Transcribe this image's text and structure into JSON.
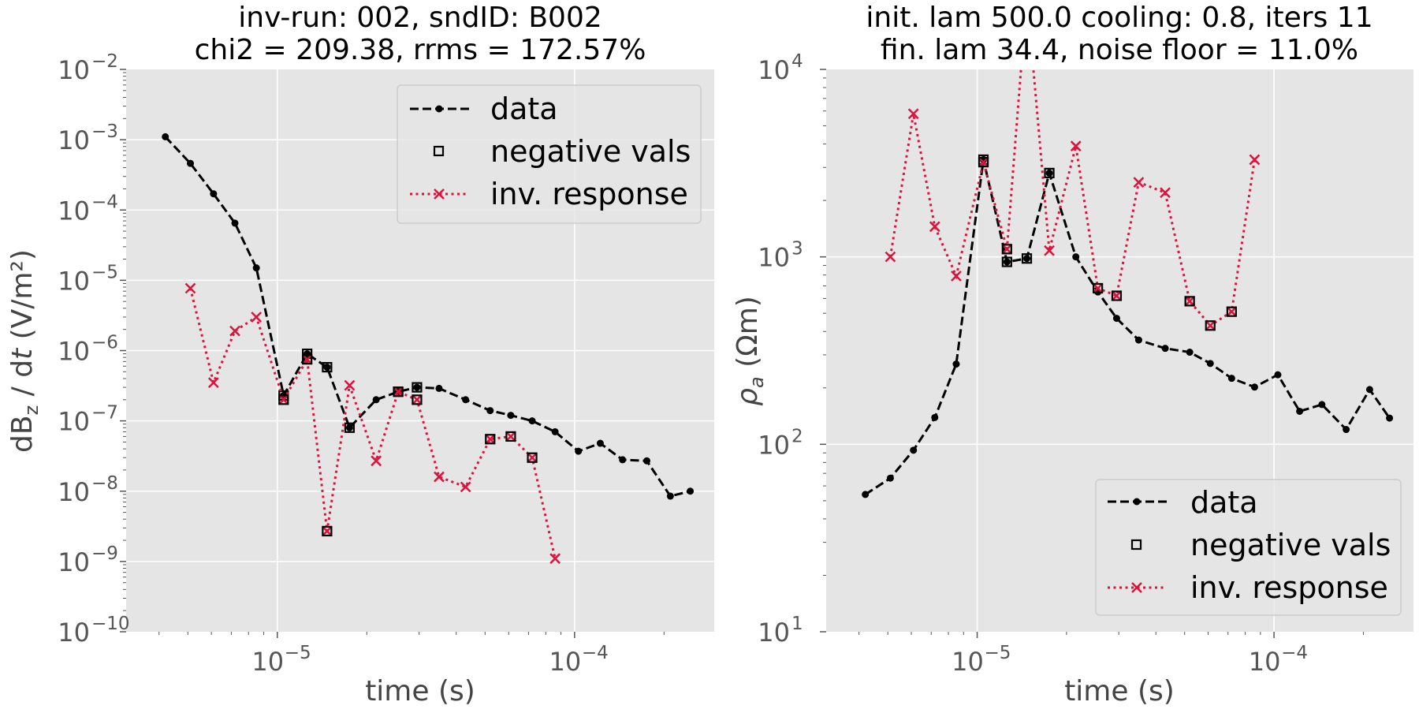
{
  "figure": {
    "left": {
      "title_line1": "inv-run: 002, sndID: B002",
      "title_line2": "chi2 = 209.38, rrms = 172.57%",
      "ylabel": "dB_z / dt (V/m²)",
      "xlabel": "time (s)"
    },
    "right": {
      "title_line1": "init. lam 500.0 cooling: 0.8, iters 11",
      "title_line2": "fin. lam 34.4, noise floor = 11.0%",
      "ylabel": "ρ_a (Ωm)",
      "xlabel": "time (s)"
    },
    "legend": {
      "data": "data",
      "negative": "negative vals",
      "response": "inv. response"
    },
    "colors": {
      "data": "#000000",
      "response": "#dc143c",
      "background": "#e5e5e5",
      "grid": "#ffffff"
    }
  },
  "chart_data": [
    {
      "type": "line",
      "title": "inv-run: 002, sndID: B002 / chi2 = 209.38, rrms = 172.57%",
      "xlabel": "time (s)",
      "ylabel": "dBz / dt (V/m²)",
      "xscale": "log",
      "yscale": "log",
      "xlim": [
        3.1e-06,
        0.000295
      ],
      "ylim": [
        1e-10,
        0.01
      ],
      "xticks": [
        {
          "v": 1e-05,
          "exp": "−5"
        },
        {
          "v": 0.0001,
          "exp": "−4"
        }
      ],
      "yticks": [
        {
          "v": 0.01,
          "exp": "−2"
        },
        {
          "v": 0.001,
          "exp": "−3"
        },
        {
          "v": 0.0001,
          "exp": "−4"
        },
        {
          "v": 1e-05,
          "exp": "−5"
        },
        {
          "v": 1e-06,
          "exp": "−6"
        },
        {
          "v": 1e-07,
          "exp": "−7"
        },
        {
          "v": 1e-08,
          "exp": "−8"
        },
        {
          "v": 1e-09,
          "exp": "−9"
        },
        {
          "v": 1e-10,
          "exp": "−10"
        }
      ],
      "grid": true,
      "legend_position": "upper right",
      "series": [
        {
          "name": "data",
          "style": "dashed-dot",
          "x": [
            4.2e-06,
            5.1e-06,
            6.1e-06,
            7.2e-06,
            8.5e-06,
            1.05e-05,
            1.26e-05,
            1.47e-05,
            1.75e-05,
            2.15e-05,
            2.55e-05,
            2.95e-05,
            3.5e-05,
            4.3e-05,
            5.2e-05,
            6.1e-05,
            7.2e-05,
            8.6e-05,
            0.000103,
            0.000122,
            0.000145,
            0.000175,
            0.00021,
            0.000245
          ],
          "y": [
            0.0011,
            0.00046,
            0.00017,
            6.5e-05,
            1.5e-05,
            2.3e-07,
            9e-07,
            5.8e-07,
            8e-08,
            2e-07,
            2.6e-07,
            3e-07,
            2.9e-07,
            2e-07,
            1.4e-07,
            1.2e-07,
            1e-07,
            7e-08,
            3.7e-08,
            4.8e-08,
            2.8e-08,
            2.7e-08,
            8.5e-09,
            1e-08
          ]
        },
        {
          "name": "negative vals",
          "style": "square",
          "x": [
            1.05e-05,
            1.26e-05,
            1.47e-05,
            1.75e-05,
            2.55e-05,
            2.95e-05
          ],
          "y": [
            2.3e-07,
            9e-07,
            5.8e-07,
            8e-08,
            2.6e-07,
            3e-07
          ]
        },
        {
          "name": "inv. response",
          "style": "dotted-x",
          "x": [
            5.1e-06,
            6.1e-06,
            7.2e-06,
            8.5e-06,
            1.05e-05,
            1.26e-05,
            1.47e-05,
            1.75e-05,
            2.15e-05,
            2.55e-05,
            2.95e-05,
            3.5e-05,
            4.3e-05,
            5.2e-05,
            6.1e-05,
            7.2e-05,
            8.6e-05
          ],
          "y": [
            7.7e-06,
            3.5e-07,
            1.9e-06,
            3e-06,
            2e-07,
            7.5e-07,
            2.7e-09,
            3.2e-07,
            2.7e-08,
            2.6e-07,
            2e-07,
            1.6e-08,
            1.15e-08,
            5.5e-08,
            6e-08,
            3e-08,
            1.1e-09
          ]
        },
        {
          "name": "inv. response negative vals",
          "style": "square",
          "x": [
            1.05e-05,
            1.26e-05,
            1.47e-05,
            2.55e-05,
            2.95e-05,
            5.2e-05,
            6.1e-05,
            7.2e-05
          ],
          "y": [
            2e-07,
            7.5e-07,
            2.7e-09,
            2.6e-07,
            2e-07,
            5.5e-08,
            6e-08,
            3e-08
          ]
        }
      ]
    },
    {
      "type": "line",
      "title": "init. lam 500.0 cooling: 0.8, iters 11 / fin. lam 34.4, noise floor = 11.0%",
      "xlabel": "time (s)",
      "ylabel": "ρa (Ωm)",
      "xscale": "log",
      "yscale": "log",
      "xlim": [
        3.1e-06,
        0.000295
      ],
      "ylim": [
        10,
        10000
      ],
      "xticks": [
        {
          "v": 1e-05,
          "exp": "−5"
        },
        {
          "v": 0.0001,
          "exp": "−4"
        }
      ],
      "yticks": [
        {
          "v": 10000.0,
          "exp": "4"
        },
        {
          "v": 1000.0,
          "exp": "3"
        },
        {
          "v": 100.0,
          "exp": "2"
        },
        {
          "v": 10.0,
          "exp": "1"
        }
      ],
      "grid": true,
      "legend_position": "lower right",
      "series": [
        {
          "name": "data",
          "style": "dashed-dot",
          "x": [
            4.2e-06,
            5.1e-06,
            6.1e-06,
            7.2e-06,
            8.5e-06,
            1.05e-05,
            1.26e-05,
            1.47e-05,
            1.75e-05,
            2.15e-05,
            2.55e-05,
            2.95e-05,
            3.5e-05,
            4.3e-05,
            5.2e-05,
            6.1e-05,
            7.2e-05,
            8.6e-05,
            0.000103,
            0.000122,
            0.000145,
            0.000175,
            0.00021,
            0.000245
          ],
          "y": [
            54,
            66,
            93,
            139,
            268,
            3300,
            940,
            980,
            2800,
            1000,
            650,
            470,
            360,
            325,
            310,
            270,
            225,
            202,
            235,
            150,
            163,
            120,
            196,
            138
          ]
        },
        {
          "name": "negative vals",
          "style": "square",
          "x": [
            1.05e-05,
            1.26e-05,
            1.47e-05,
            1.75e-05
          ],
          "y": [
            3300,
            940,
            980,
            2800
          ]
        },
        {
          "name": "inv. response",
          "style": "dotted-x",
          "x": [
            5.1e-06,
            6.1e-06,
            7.2e-06,
            8.5e-06,
            1.05e-05,
            1.26e-05,
            1.47e-05,
            1.75e-05,
            2.15e-05,
            2.55e-05,
            2.95e-05,
            3.5e-05,
            4.3e-05,
            5.2e-05,
            6.1e-05,
            7.2e-05,
            8.6e-05
          ],
          "y": [
            1000,
            5800,
            1450,
            790,
            3200,
            1100,
            25000,
            1080,
            3900,
            680,
            620,
            2500,
            2200,
            580,
            430,
            510,
            3300
          ]
        },
        {
          "name": "inv. response negative vals",
          "style": "square",
          "x": [
            1.05e-05,
            1.26e-05,
            2.55e-05,
            2.95e-05,
            5.2e-05,
            6.1e-05,
            7.2e-05
          ],
          "y": [
            3200,
            1100,
            680,
            620,
            580,
            430,
            510
          ]
        }
      ]
    }
  ]
}
